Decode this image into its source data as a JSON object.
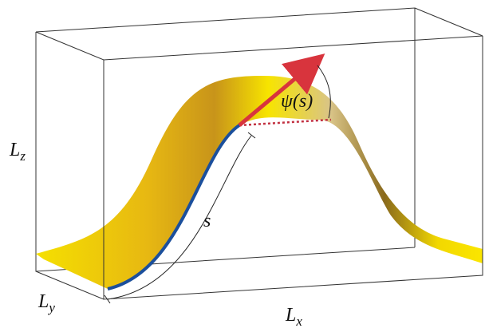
{
  "labels": [
    {
      "main": "L",
      "sub": "z"
    },
    {
      "main": "L",
      "sub": "y"
    },
    {
      "main": "L",
      "sub": "x"
    }
  ],
  "arc_length": "s",
  "angle": "ψ(s)"
}
